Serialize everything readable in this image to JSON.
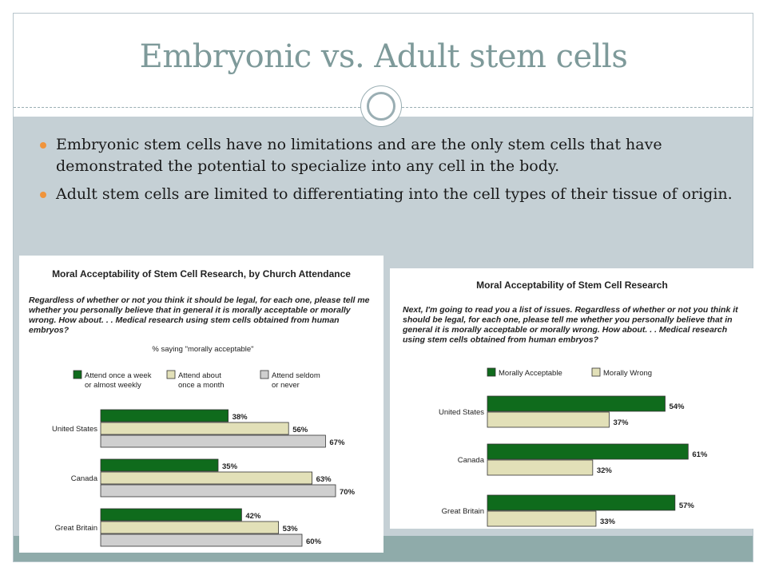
{
  "slide": {
    "title": "Embryonic vs. Adult stem cells",
    "bullets": [
      "Embryonic stem cells have no limitations and are the only stem cells that have demonstrated the potential to specialize into any  cell in the body.",
      "Adult stem cells are limited to differentiating into the cell types of their tissue of origin."
    ]
  },
  "colors": {
    "green": "#0f6b1c",
    "beige": "#e2e0b8",
    "gray": "#cfcfcf",
    "accent": "#f0943c",
    "title": "#7e9a9a"
  },
  "chart_data": [
    {
      "type": "bar",
      "orientation": "horizontal",
      "title": "Moral Acceptability of Stem Cell Research, by Church Attendance",
      "subtitle": "Regardless of whether or not you think it should be legal, for each one, please tell me whether you personally believe that in general it is morally acceptable or morally wrong. How about. . . Medical research using stem cells obtained from human embryos?",
      "note": "% saying \"morally acceptable\"",
      "categories": [
        "United States",
        "Canada",
        "Great Britain"
      ],
      "series": [
        {
          "name": "Attend once a week or almost weekly",
          "legend_lines": [
            "Attend once a week",
            "or almost weekly"
          ],
          "values": [
            38,
            35,
            42
          ],
          "labels": [
            "38%",
            "35%",
            "42%"
          ]
        },
        {
          "name": "Attend about once a month",
          "legend_lines": [
            "Attend about",
            "once a month"
          ],
          "values": [
            56,
            63,
            53
          ],
          "labels": [
            "56%",
            "63%",
            "53%"
          ]
        },
        {
          "name": "Attend seldom or never",
          "legend_lines": [
            "Attend seldom",
            "or never"
          ],
          "values": [
            67,
            70,
            60
          ],
          "labels": [
            "67%",
            "70%",
            "60%"
          ]
        }
      ],
      "xlim": [
        0,
        100
      ]
    },
    {
      "type": "bar",
      "orientation": "horizontal",
      "title": "Moral Acceptability of Stem Cell Research",
      "subtitle": "Next, I'm going to read you a list of issues. Regardless of whether or not you think it should be legal, for each one, please tell me whether you personally believe that in general it is morally acceptable or morally wrong. How about. . . Medical research using stem cells obtained from human embryos?",
      "categories": [
        "United States",
        "Canada",
        "Great Britain"
      ],
      "series": [
        {
          "name": "Morally Acceptable",
          "legend_lines": [
            "Morally Acceptable"
          ],
          "values": [
            54,
            61,
            57
          ],
          "labels": [
            "54%",
            "61%",
            "57%"
          ]
        },
        {
          "name": "Morally Wrong",
          "legend_lines": [
            "Morally Wrong"
          ],
          "values": [
            37,
            32,
            33
          ],
          "labels": [
            "37%",
            "32%",
            "33%"
          ]
        }
      ],
      "xlim": [
        0,
        100
      ]
    }
  ]
}
